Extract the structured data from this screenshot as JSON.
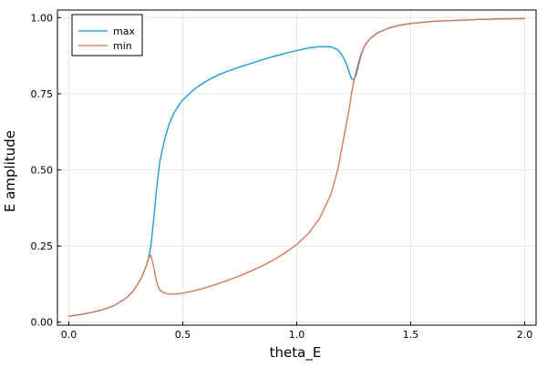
{
  "chart_data": {
    "type": "line",
    "title": "",
    "xlabel": "theta_E",
    "ylabel": "E amplitude",
    "xlim": [
      -0.05,
      2.05
    ],
    "ylim": [
      -0.01,
      1.025
    ],
    "grid": true,
    "legend_position": "top-left",
    "x_ticks": [
      {
        "value": 0.0,
        "label": "0.0"
      },
      {
        "value": 0.5,
        "label": "0.5"
      },
      {
        "value": 1.0,
        "label": "1.0"
      },
      {
        "value": 1.5,
        "label": "1.5"
      },
      {
        "value": 2.0,
        "label": "2.0"
      }
    ],
    "y_ticks": [
      {
        "value": 0.0,
        "label": "0.00"
      },
      {
        "value": 0.25,
        "label": "0.25"
      },
      {
        "value": 0.5,
        "label": "0.50"
      },
      {
        "value": 0.75,
        "label": "0.75"
      },
      {
        "value": 1.0,
        "label": "1.00"
      }
    ],
    "series": [
      {
        "name": "max",
        "color": "#009af9",
        "x": [
          0.0,
          0.05,
          0.1,
          0.15,
          0.2,
          0.25,
          0.28,
          0.3,
          0.32,
          0.34,
          0.35,
          0.36,
          0.37,
          0.38,
          0.39,
          0.4,
          0.42,
          0.44,
          0.46,
          0.48,
          0.5,
          0.55,
          0.6,
          0.65,
          0.7,
          0.75,
          0.8,
          0.85,
          0.9,
          0.95,
          1.0,
          1.05,
          1.1,
          1.15,
          1.18,
          1.2,
          1.22,
          1.23,
          1.24,
          1.25,
          1.26,
          1.27,
          1.28,
          1.29,
          1.3,
          1.32,
          1.35,
          1.4,
          1.45,
          1.5,
          1.6,
          1.7,
          1.8,
          1.9,
          2.0
        ],
        "y": [
          0.02,
          0.025,
          0.032,
          0.041,
          0.055,
          0.078,
          0.1,
          0.122,
          0.148,
          0.185,
          0.21,
          0.25,
          0.32,
          0.4,
          0.47,
          0.53,
          0.6,
          0.65,
          0.685,
          0.71,
          0.73,
          0.765,
          0.79,
          0.81,
          0.825,
          0.838,
          0.85,
          0.862,
          0.873,
          0.883,
          0.892,
          0.9,
          0.905,
          0.904,
          0.895,
          0.875,
          0.845,
          0.82,
          0.8,
          0.795,
          0.81,
          0.84,
          0.87,
          0.893,
          0.91,
          0.93,
          0.948,
          0.965,
          0.975,
          0.981,
          0.988,
          0.991,
          0.994,
          0.996,
          0.997
        ]
      },
      {
        "name": "min",
        "color": "#e26f46",
        "x": [
          0.0,
          0.05,
          0.1,
          0.15,
          0.2,
          0.25,
          0.28,
          0.3,
          0.32,
          0.34,
          0.35,
          0.36,
          0.37,
          0.38,
          0.39,
          0.4,
          0.42,
          0.44,
          0.46,
          0.48,
          0.5,
          0.55,
          0.6,
          0.65,
          0.7,
          0.75,
          0.8,
          0.85,
          0.9,
          0.95,
          1.0,
          1.05,
          1.1,
          1.15,
          1.18,
          1.2,
          1.22,
          1.23,
          1.24,
          1.25,
          1.26,
          1.27,
          1.28,
          1.29,
          1.3,
          1.32,
          1.35,
          1.4,
          1.45,
          1.5,
          1.6,
          1.7,
          1.8,
          1.9,
          2.0
        ],
        "y": [
          0.02,
          0.025,
          0.032,
          0.041,
          0.055,
          0.078,
          0.1,
          0.122,
          0.148,
          0.185,
          0.21,
          0.22,
          0.19,
          0.15,
          0.12,
          0.105,
          0.095,
          0.092,
          0.092,
          0.093,
          0.095,
          0.103,
          0.113,
          0.125,
          0.138,
          0.152,
          0.168,
          0.185,
          0.205,
          0.228,
          0.255,
          0.29,
          0.34,
          0.42,
          0.5,
          0.58,
          0.66,
          0.7,
          0.75,
          0.79,
          0.82,
          0.85,
          0.875,
          0.895,
          0.91,
          0.93,
          0.948,
          0.965,
          0.975,
          0.981,
          0.988,
          0.991,
          0.994,
          0.996,
          0.997
        ]
      }
    ]
  }
}
